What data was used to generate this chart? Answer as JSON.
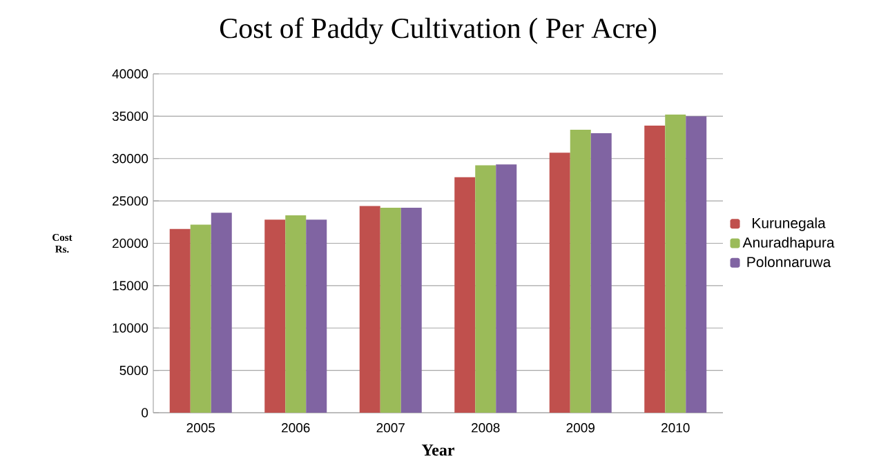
{
  "chart_data": {
    "type": "bar",
    "title": "Cost of Paddy  Cultivation ( Per Acre)",
    "xlabel": "Year",
    "ylabel": "Cost Rs.",
    "categories": [
      "2005",
      "2006",
      "2007",
      "2008",
      "2009",
      "2010"
    ],
    "series": [
      {
        "name": "Kurunegala",
        "color": "#c0504d",
        "values": [
          21700,
          22800,
          24400,
          27800,
          30700,
          33900
        ]
      },
      {
        "name": "Anuradhapura",
        "color": "#9bbb59",
        "values": [
          22200,
          23300,
          24200,
          29200,
          33400,
          35200
        ]
      },
      {
        "name": "Polonnaruwa",
        "color": "#8064a2",
        "values": [
          23600,
          22800,
          24200,
          29300,
          33000,
          35000
        ]
      }
    ],
    "ylim": [
      0,
      40000
    ],
    "yticks": [
      0,
      5000,
      10000,
      15000,
      20000,
      25000,
      30000,
      35000,
      40000
    ],
    "grid": "y",
    "legend": "right"
  }
}
